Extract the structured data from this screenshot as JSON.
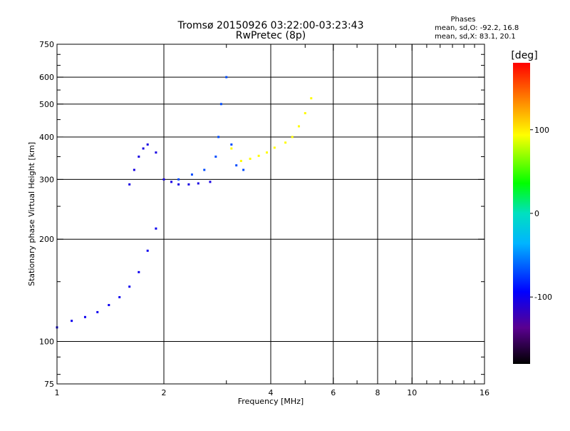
{
  "chart_data": {
    "type": "scatter",
    "title": "Tromsø 20150926 03:22:00-03:23:43",
    "subtitle": "RwPretec (8p)",
    "xlabel": "Frequency [MHz]",
    "ylabel": "Stationary phase Virtual Height [km]",
    "x_scale": "log",
    "y_scale": "log",
    "xlim": [
      1,
      16
    ],
    "ylim": [
      75,
      750
    ],
    "x_ticks": [
      1,
      2,
      4,
      6,
      8,
      10,
      16
    ],
    "y_ticks": [
      75,
      100,
      200,
      300,
      400,
      500,
      600,
      750
    ],
    "grid": true,
    "legend": {
      "title": "Phases",
      "lines": [
        "mean, sd,O: -92.2, 16.8",
        "mean, sd,X: 83.1, 20.1"
      ],
      "position": "top-right"
    },
    "colorbar": {
      "title": "[deg]",
      "ticks": [
        100,
        0,
        -100
      ],
      "range": [
        -180,
        180
      ],
      "position": "right"
    },
    "series": [
      {
        "trace": "o-mode-low",
        "phase": -100,
        "x": [
          1.0,
          1.1,
          1.2,
          1.3,
          1.4,
          1.5,
          1.6,
          1.7,
          1.8,
          1.9
        ],
        "y": [
          110,
          115,
          118,
          122,
          128,
          135,
          145,
          160,
          185,
          215
        ]
      },
      {
        "trace": "o-mode-mid",
        "phase": -105,
        "x": [
          1.6,
          1.65,
          1.7,
          1.75,
          1.8,
          1.9,
          2.0,
          2.1,
          2.2,
          2.35,
          2.5,
          2.7
        ],
        "y": [
          290,
          320,
          350,
          370,
          380,
          360,
          300,
          295,
          290,
          290,
          292,
          295
        ]
      },
      {
        "trace": "o-mode-f2",
        "phase": -70,
        "x": [
          2.2,
          2.4,
          2.6,
          2.8,
          2.85,
          2.9,
          3.0,
          3.1,
          3.2,
          3.35
        ],
        "y": [
          300,
          310,
          320,
          350,
          400,
          500,
          600,
          380,
          330,
          320
        ]
      },
      {
        "trace": "x-mode",
        "phase": 95,
        "x": [
          3.1,
          3.3,
          3.5,
          3.7,
          3.9,
          4.1,
          4.4,
          4.6,
          4.8,
          5.0,
          5.2
        ],
        "y": [
          370,
          340,
          345,
          352,
          360,
          372,
          385,
          400,
          430,
          470,
          520
        ]
      }
    ]
  }
}
